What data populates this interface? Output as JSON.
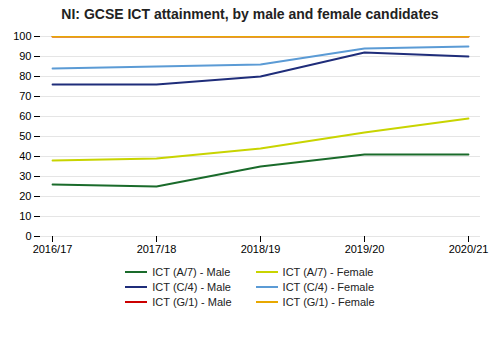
{
  "chart_data": {
    "type": "line",
    "title": "NI:  GCSE ICT attainment,  by male and female candidates",
    "categories": [
      "2016/17",
      "2017/18",
      "2018/19",
      "2019/20",
      "2020/21"
    ],
    "series": [
      {
        "name": "ICT (A/7) - Male",
        "color": "#1a6b2b",
        "values": [
          26,
          25,
          35,
          41,
          41
        ]
      },
      {
        "name": "ICT (A/7) - Female",
        "color": "#c8d400",
        "values": [
          38,
          39,
          44,
          52,
          59
        ]
      },
      {
        "name": "ICT (C/4) - Male",
        "color": "#1f2d7a",
        "values": [
          76,
          76,
          80,
          92,
          90
        ]
      },
      {
        "name": "ICT (C/4) - Female",
        "color": "#5b9bd5",
        "values": [
          84,
          85,
          86,
          94,
          95
        ]
      },
      {
        "name": "ICT (G/1) - Male",
        "color": "#cc0000",
        "values": [
          100,
          100,
          100,
          100,
          100
        ]
      },
      {
        "name": "ICT (G/1) - Female",
        "color": "#e8a800",
        "values": [
          100,
          100,
          100,
          100,
          100
        ]
      }
    ],
    "ylim": [
      0,
      100
    ],
    "yticks": [
      0,
      10,
      20,
      30,
      40,
      50,
      60,
      70,
      80,
      90,
      100
    ],
    "grid": true,
    "legend": "bottom"
  }
}
